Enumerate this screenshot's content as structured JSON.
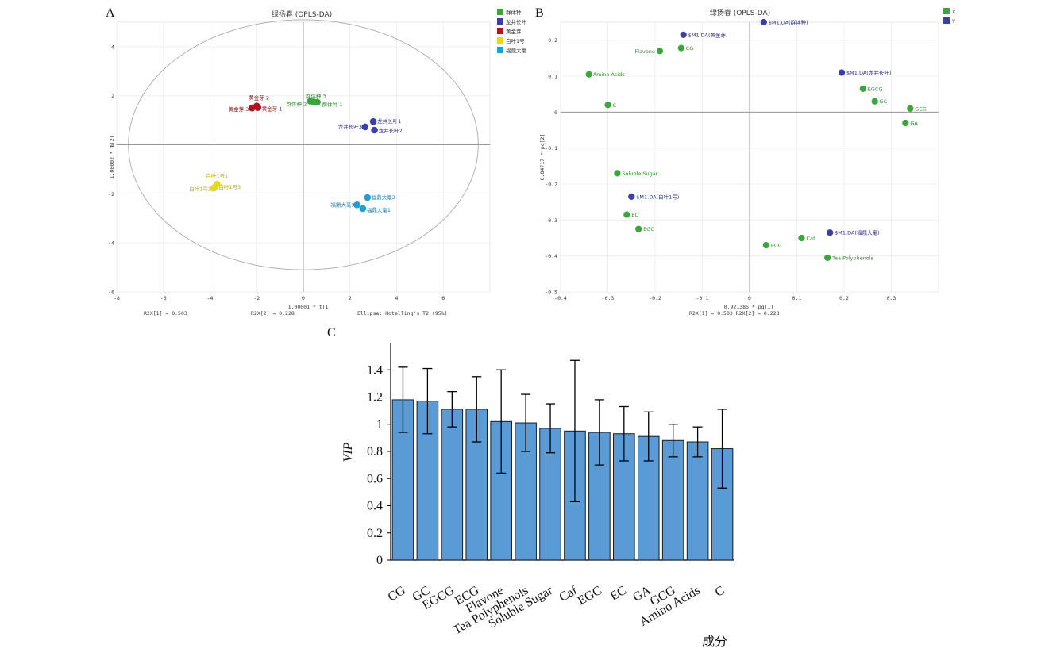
{
  "panels": {
    "a": "A",
    "b": "B",
    "c": "C"
  },
  "chart_data": [
    {
      "type": "scatter",
      "title": "绿扬春 (OPLS-DA)",
      "xlabel": "1.00001 * t[1]",
      "ylabel": "1.00002 * t[2]",
      "xlim": [
        -8,
        8
      ],
      "ylim": [
        -6,
        5
      ],
      "xticks": [
        -8,
        -6,
        -4,
        -2,
        0,
        2,
        4,
        6
      ],
      "yticks": [
        -6,
        -4,
        -2,
        0,
        2,
        4
      ],
      "footer": {
        "r2x1": "R2X[1] = 0.503",
        "r2x2": "R2X[2] = 0.228",
        "ellipse": "Ellipse: Hotelling's T2 (95%)"
      },
      "ellipse": {
        "rx": 7.5,
        "ry": 5.1
      },
      "legend": [
        "群体种",
        "龙井长叶",
        "黄金芽",
        "白叶1号",
        "福鼎大毫"
      ],
      "colors": {
        "群体种": "#3aa63a",
        "龙井长叶": "#3b3fa8",
        "黄金芽": "#b0141c",
        "白叶1号": "#e6d81e",
        "福鼎大毫": "#1f9fd8"
      },
      "label_colors": {
        "群体种": "#2e8a2e",
        "龙井长叶": "#2a2e8a",
        "黄金芽": "#8a1014",
        "白叶1号": "#b8a818",
        "福鼎大毫": "#1a7ab0"
      },
      "points": [
        {
          "group": "群体种",
          "label": "群体种 3",
          "x": 0.3,
          "y": 1.78
        },
        {
          "group": "群体种",
          "label": "群体种 2",
          "x": 0.45,
          "y": 1.75
        },
        {
          "group": "群体种",
          "label": "群体种 1",
          "x": 0.6,
          "y": 1.74
        },
        {
          "group": "龙井长叶",
          "label": "龙井长叶1",
          "x": 3.0,
          "y": 0.95
        },
        {
          "group": "龙井长叶",
          "label": "龙井长叶3",
          "x": 2.65,
          "y": 0.73
        },
        {
          "group": "龙井长叶",
          "label": "龙井长叶2",
          "x": 3.05,
          "y": 0.6
        },
        {
          "group": "黄金芽",
          "label": "黄金芽 2",
          "x": -2.0,
          "y": 1.58
        },
        {
          "group": "黄金芽",
          "label": "黄金芽 3",
          "x": -2.2,
          "y": 1.5
        },
        {
          "group": "黄金芽",
          "label": "黄金芽 1",
          "x": -1.95,
          "y": 1.52
        },
        {
          "group": "白叶1号",
          "label": "白叶1号1",
          "x": -3.7,
          "y": -1.6
        },
        {
          "group": "白叶1号",
          "label": "白叶1号2",
          "x": -3.85,
          "y": -1.77
        },
        {
          "group": "白叶1号",
          "label": "白叶1号3",
          "x": -3.8,
          "y": -1.73
        },
        {
          "group": "福鼎大毫",
          "label": "福鼎大毫2",
          "x": 2.75,
          "y": -2.15
        },
        {
          "group": "福鼎大毫",
          "label": "福鼎大毫3",
          "x": 2.3,
          "y": -2.45
        },
        {
          "group": "福鼎大毫",
          "label": "福鼎大毫1",
          "x": 2.55,
          "y": -2.6
        }
      ]
    },
    {
      "type": "scatter",
      "title": "绿扬春 (OPLS-DA)",
      "xlabel": "0.921385 * pq[1]",
      "ylabel": "0.84717 * pq[2]",
      "xlim": [
        -0.4,
        0.4
      ],
      "ylim": [
        -0.5,
        0.25
      ],
      "xticks": [
        -0.4,
        -0.3,
        -0.2,
        -0.1,
        0,
        0.1,
        0.2,
        0.3
      ],
      "yticks": [
        -0.5,
        -0.4,
        -0.3,
        -0.2,
        -0.1,
        0,
        0.1,
        0.2
      ],
      "footer": {
        "r2x": "R2X[1] = 0.503 R2X[2] = 0.228"
      },
      "legend": [
        "X",
        "Y"
      ],
      "colors": {
        "X": "#3aa63a",
        "Y": "#3b3fa8"
      },
      "label_colors": {
        "X": "#2e8a2e",
        "Y": "#2a2e8a"
      },
      "points": [
        {
          "group": "Y",
          "label": "$M1.DA(群体种)",
          "x": 0.03,
          "y": 0.25
        },
        {
          "group": "Y",
          "label": "$M1.DA(黄金芽)",
          "x": -0.14,
          "y": 0.215
        },
        {
          "group": "X",
          "label": "Flavone",
          "x": -0.19,
          "y": 0.17
        },
        {
          "group": "X",
          "label": "CG",
          "x": -0.145,
          "y": 0.178
        },
        {
          "group": "Y",
          "label": "$M1.DA(龙井长叶)",
          "x": 0.195,
          "y": 0.11
        },
        {
          "group": "X",
          "label": "Amino Acids",
          "x": -0.34,
          "y": 0.105
        },
        {
          "group": "X",
          "label": "EGCG",
          "x": 0.24,
          "y": 0.065
        },
        {
          "group": "X",
          "label": "GC",
          "x": 0.265,
          "y": 0.03
        },
        {
          "group": "X",
          "label": "GCG",
          "x": 0.34,
          "y": 0.01
        },
        {
          "group": "X",
          "label": "C",
          "x": -0.3,
          "y": 0.02
        },
        {
          "group": "X",
          "label": "GA",
          "x": 0.33,
          "y": -0.03
        },
        {
          "group": "X",
          "label": "Soluble Sugar",
          "x": -0.28,
          "y": -0.17
        },
        {
          "group": "Y",
          "label": "$M1.DA(白叶1号)",
          "x": -0.25,
          "y": -0.235
        },
        {
          "group": "X",
          "label": "EC",
          "x": -0.26,
          "y": -0.285
        },
        {
          "group": "X",
          "label": "EGC",
          "x": -0.235,
          "y": -0.325
        },
        {
          "group": "Y",
          "label": "$M1.DA(福鼎大毫)",
          "x": 0.17,
          "y": -0.335
        },
        {
          "group": "X",
          "label": "Caf",
          "x": 0.11,
          "y": -0.35
        },
        {
          "group": "X",
          "label": "ECG",
          "x": 0.035,
          "y": -0.37
        },
        {
          "group": "X",
          "label": "Tea Polyphenols",
          "x": 0.165,
          "y": -0.405
        }
      ]
    },
    {
      "type": "bar",
      "xlabel": "成分",
      "ylabel": "VIP",
      "ylim": [
        0,
        1.6
      ],
      "yticks": [
        "0",
        "0.2",
        "0.4",
        "0.6",
        "0.8",
        "1",
        "1.2",
        "1.4"
      ],
      "bar_color": "#5b9bd5",
      "categories": [
        "CG",
        "GC",
        "EGCG",
        "ECG",
        "Flavone",
        "Tea Polyphenols",
        "Soluble Sugar",
        "Caf",
        "EGC",
        "EC",
        "GA",
        "GCG",
        "Amino Acids",
        "C"
      ],
      "values": [
        1.18,
        1.17,
        1.11,
        1.11,
        1.02,
        1.01,
        0.97,
        0.95,
        0.94,
        0.93,
        0.91,
        0.88,
        0.87,
        0.82
      ],
      "errors": [
        0.24,
        0.24,
        0.13,
        0.24,
        0.38,
        0.21,
        0.18,
        0.52,
        0.24,
        0.2,
        0.18,
        0.12,
        0.11,
        0.29
      ]
    }
  ]
}
